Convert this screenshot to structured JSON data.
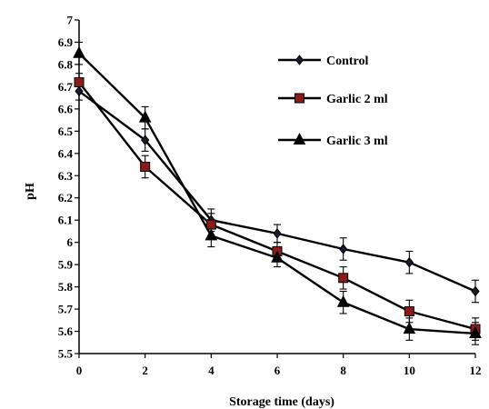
{
  "chart_data": {
    "type": "line",
    "title": "",
    "xlabel": "Storage time (days)",
    "ylabel": "pH",
    "x": [
      0,
      2,
      4,
      6,
      8,
      10,
      12
    ],
    "xlim": [
      0,
      12
    ],
    "ylim": [
      5.5,
      7
    ],
    "xticks": [
      "0",
      "2",
      "4",
      "6",
      "8",
      "10",
      "12"
    ],
    "yticks": [
      "5.5",
      "5.6",
      "5.7",
      "5.8",
      "5.9",
      "6",
      "6.1",
      "6.2",
      "6.3",
      "6.4",
      "6.5",
      "6.6",
      "6.7",
      "6.8",
      "6.9",
      "7"
    ],
    "grid": false,
    "legend_position": "top-right",
    "series": [
      {
        "name": "Control",
        "marker": "diamond",
        "marker_fill": "#1a1a2e",
        "color": "#000000",
        "values": [
          6.68,
          6.46,
          6.1,
          6.04,
          5.97,
          5.91,
          5.78
        ],
        "errors": [
          0.04,
          0.05,
          0.05,
          0.04,
          0.05,
          0.05,
          0.05
        ]
      },
      {
        "name": "Garlic 2 ml",
        "marker": "square",
        "marker_fill": "#8b1a1a",
        "color": "#000000",
        "values": [
          6.72,
          6.34,
          6.08,
          5.96,
          5.84,
          5.69,
          5.61
        ],
        "errors": [
          0.04,
          0.05,
          0.05,
          0.04,
          0.05,
          0.05,
          0.05
        ]
      },
      {
        "name": "Garlic 3 ml",
        "marker": "triangle",
        "marker_fill": "#000000",
        "color": "#000000",
        "values": [
          6.85,
          6.56,
          6.03,
          5.93,
          5.73,
          5.61,
          5.59
        ],
        "errors": [
          0.05,
          0.05,
          0.05,
          0.04,
          0.05,
          0.05,
          0.05
        ]
      }
    ]
  }
}
